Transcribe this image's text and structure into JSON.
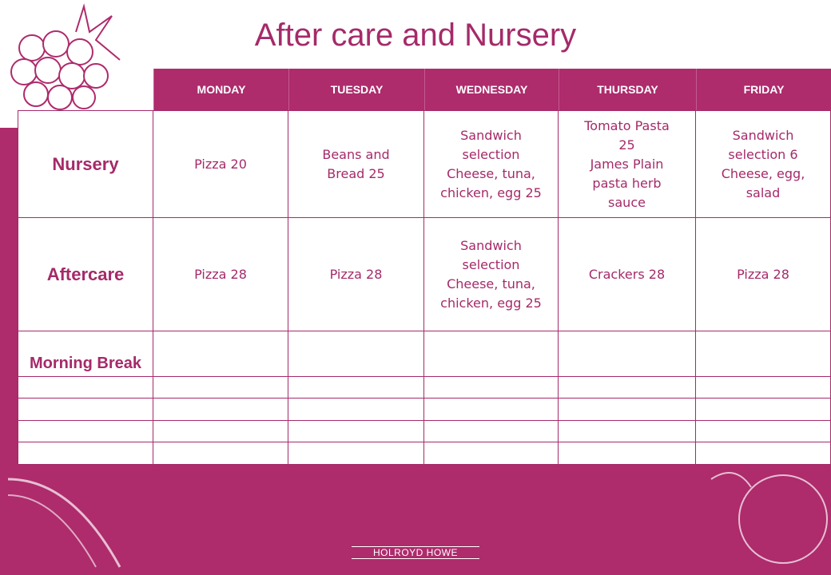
{
  "title": "After care and Nursery",
  "table": {
    "header": [
      "MONDAY",
      "TUESDAY",
      "WEDNESDAY",
      "THURSDAY",
      "FRIDAY"
    ],
    "rows": [
      {
        "label": "Nursery",
        "cells": [
          [
            "Pizza 20"
          ],
          [
            "Beans and",
            "Bread 25"
          ],
          [
            "Sandwich",
            "selection",
            "Cheese, tuna,",
            "chicken, egg 25"
          ],
          [
            "Tomato Pasta",
            "25",
            "James Plain",
            "pasta herb",
            "sauce"
          ],
          [
            "Sandwich",
            "selection 6",
            "Cheese, egg,",
            "salad"
          ]
        ]
      },
      {
        "label": "Aftercare",
        "cells": [
          [
            "Pizza 28"
          ],
          [
            "Pizza 28"
          ],
          [
            "Sandwich",
            "selection",
            "Cheese, tuna,",
            "chicken, egg 25"
          ],
          [
            "Crackers 28"
          ],
          [
            "Pizza 28"
          ]
        ]
      },
      {
        "label": "Morning Break"
      }
    ]
  },
  "footer": {
    "logo": "HOLROYD HOWE"
  }
}
